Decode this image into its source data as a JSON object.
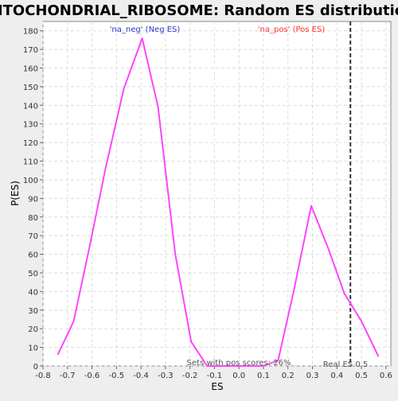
{
  "chart_data": {
    "type": "line",
    "title": "MITOCHONDRIAL_RIBOSOME: Random ES distribution",
    "xlabel": "ES",
    "ylabel": "P(ES)",
    "xlim": [
      -0.8,
      0.62
    ],
    "ylim": [
      0,
      185
    ],
    "x_ticks": [
      "-0.8",
      "-0.7",
      "-0.6",
      "-0.5",
      "-0.4",
      "-0.3",
      "-0.2",
      "-0.1",
      "0.0",
      "0.1",
      "0.2",
      "0.3",
      "0.4",
      "0.5",
      "0.6"
    ],
    "y_ticks": [
      "0",
      "10",
      "20",
      "30",
      "40",
      "50",
      "60",
      "70",
      "80",
      "90",
      "100",
      "110",
      "120",
      "130",
      "140",
      "150",
      "160",
      "170",
      "180"
    ],
    "grid": true,
    "line_color": "#ff44ff",
    "series": [
      {
        "x": [
          -0.74,
          -0.675,
          -0.61,
          -0.545,
          -0.47,
          -0.395,
          -0.33,
          -0.26,
          -0.195,
          -0.13,
          -0.065,
          0.0,
          0.1,
          0.16,
          0.225,
          0.295,
          0.365,
          0.43,
          0.5,
          0.57
        ],
        "values": [
          6,
          24,
          64,
          106,
          149,
          176,
          139,
          60,
          13,
          0,
          0,
          0,
          0,
          3,
          41,
          86,
          63,
          39,
          24,
          5
        ]
      }
    ],
    "annotations": {
      "neg_label": "'na_neg' (Neg ES)",
      "pos_label": "'na_pos' (Pos ES)",
      "pos_scores": "Sets with pos scores: 26%",
      "real_es": "Real ES 0.5"
    },
    "neg_label_color": "#3333cc",
    "pos_label_color": "#ff3333",
    "real_es_value": 0.455
  }
}
